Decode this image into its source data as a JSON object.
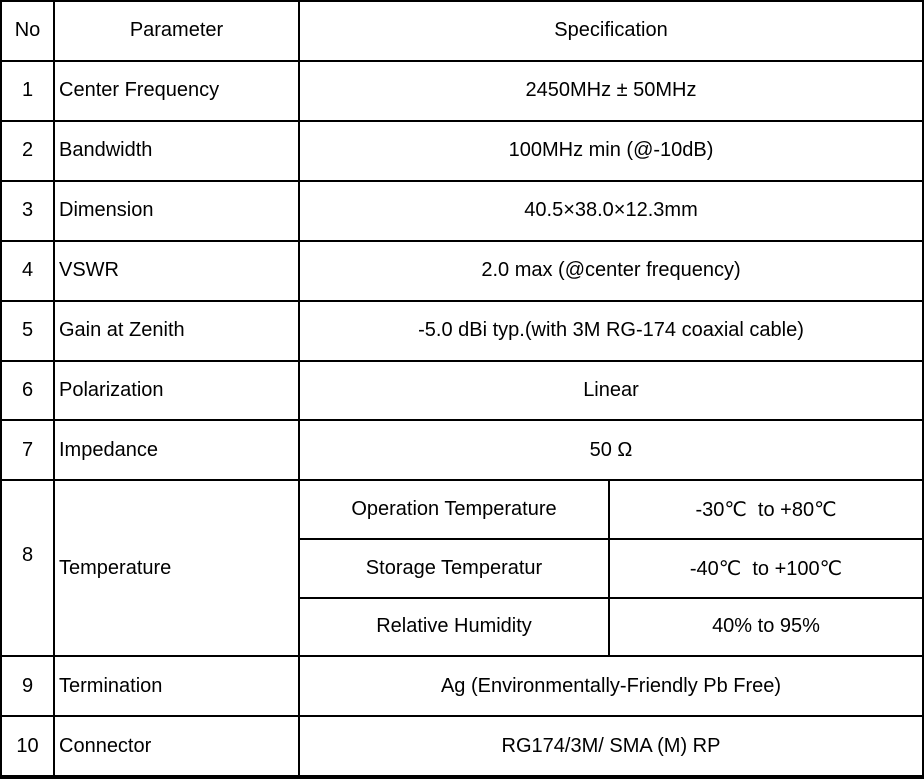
{
  "table": {
    "headers": {
      "no": "No",
      "parameter": "Parameter",
      "specification": "Specification"
    },
    "rows": [
      {
        "no": "1",
        "parameter": "Center Frequency",
        "specification": "2450MHz ± 50MHz"
      },
      {
        "no": "2",
        "parameter": "Bandwidth",
        "specification": "100MHz min (@-10dB)"
      },
      {
        "no": "3",
        "parameter": "Dimension",
        "specification": "40.5×38.0×12.3mm"
      },
      {
        "no": "4",
        "parameter": "VSWR",
        "specification": "2.0 max (@center frequency)"
      },
      {
        "no": "5",
        "parameter": "Gain at Zenith",
        "specification": "-5.0 dBi typ.(with 3M RG-174 coaxial cable)"
      },
      {
        "no": "6",
        "parameter": "Polarization",
        "specification": "Linear"
      },
      {
        "no": "7",
        "parameter": "Impedance",
        "specification": "50 Ω"
      },
      {
        "no": "8",
        "parameter": "Temperature",
        "sub_rows": [
          {
            "name": "Operation Temperature",
            "value": "-30℃  to +80℃"
          },
          {
            "name": "Storage Temperatur",
            "value": "-40℃  to +100℃"
          },
          {
            "name": "Relative Humidity",
            "value": "40% to 95%"
          }
        ]
      },
      {
        "no": "9",
        "parameter": "Termination",
        "specification": "Ag (Environmentally-Friendly Pb Free)"
      },
      {
        "no": "10",
        "parameter": "Connector",
        "specification": "RG174/3M/ SMA (M) RP"
      }
    ]
  },
  "colors": {
    "border": "#000000",
    "background": "#ffffff",
    "text": "#000000"
  }
}
